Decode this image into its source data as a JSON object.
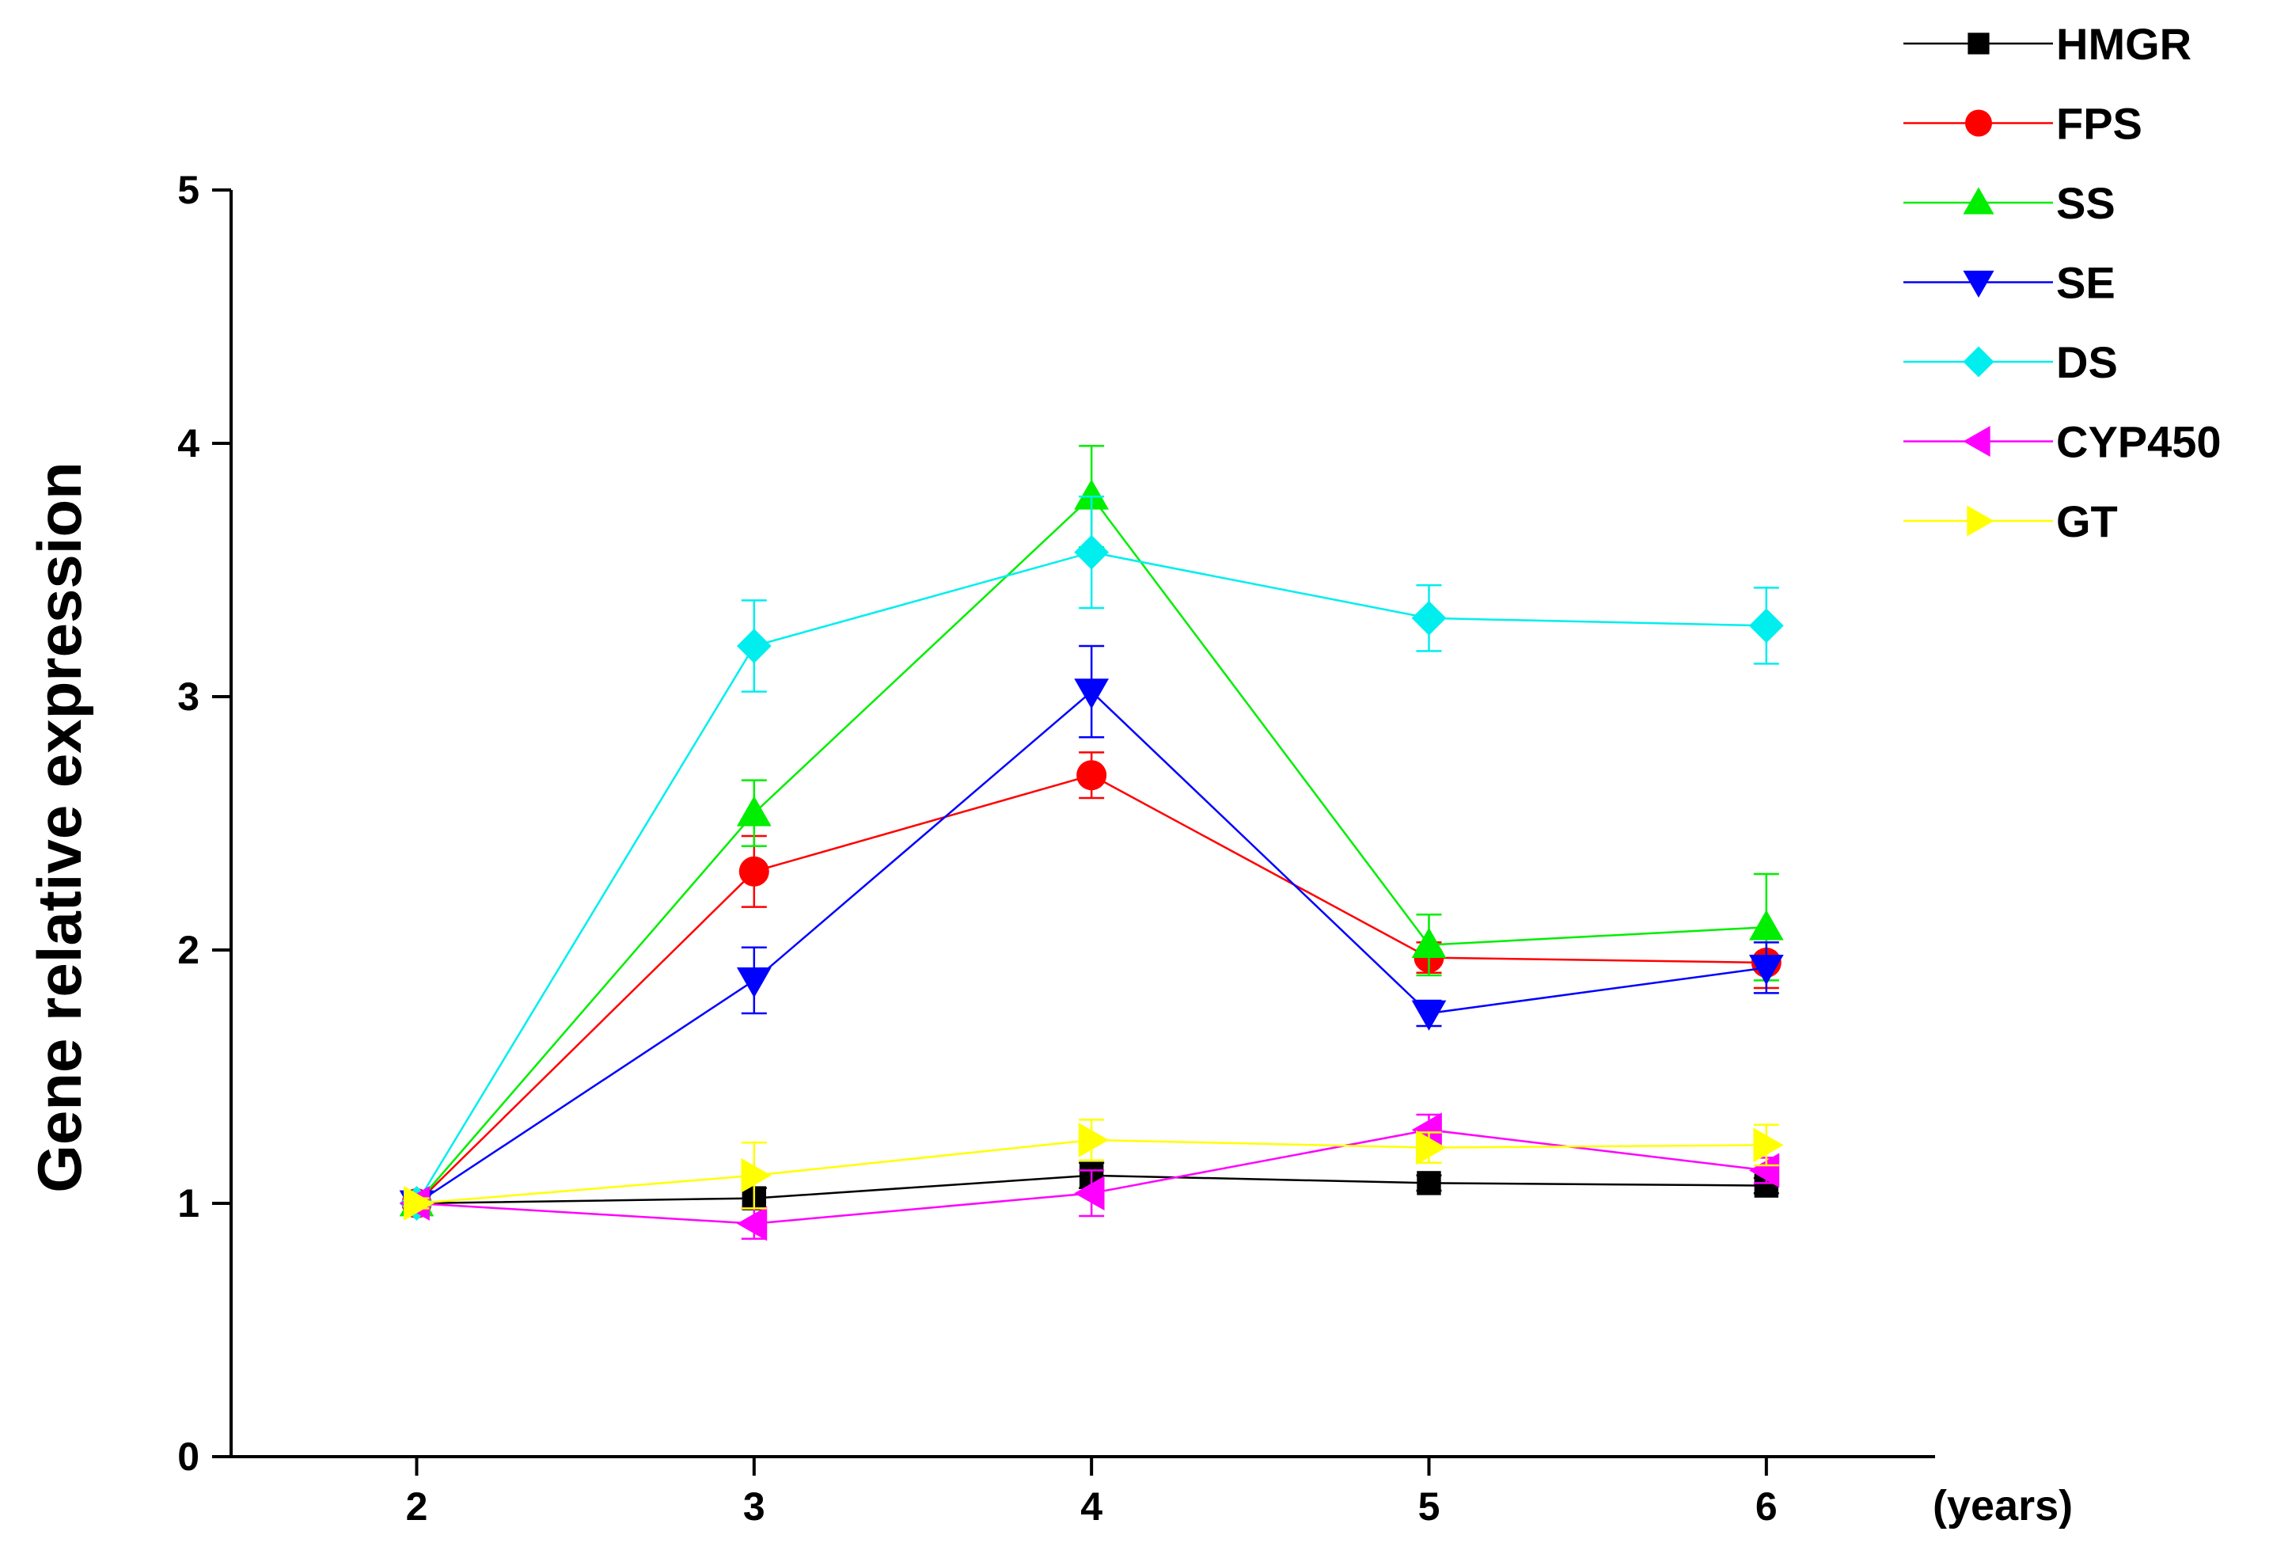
{
  "chart_data": {
    "type": "line",
    "title": "",
    "xlabel": "(years)",
    "ylabel": "Gene relative expression",
    "x": [
      2,
      3,
      4,
      5,
      6
    ],
    "xlim": [
      1.45,
      6.5
    ],
    "ylim": [
      0,
      5
    ],
    "yticks": [
      0,
      1,
      2,
      3,
      4,
      5
    ],
    "xticks": [
      2,
      3,
      4,
      5,
      6
    ],
    "grid": false,
    "legend_position": "top-right",
    "series": [
      {
        "name": "HMGR",
        "color": "#000000",
        "marker": "square",
        "values": [
          1.0,
          1.02,
          1.11,
          1.08,
          1.07
        ],
        "errors": [
          0.02,
          0.04,
          0.05,
          0.03,
          0.03
        ]
      },
      {
        "name": "FPS",
        "color": "#ff0000",
        "marker": "circle",
        "values": [
          1.0,
          2.31,
          2.69,
          1.97,
          1.95
        ],
        "errors": [
          0.02,
          0.14,
          0.09,
          0.06,
          0.1
        ]
      },
      {
        "name": "SS",
        "color": "#00ee00",
        "marker": "triangle-up",
        "values": [
          1.0,
          2.54,
          3.79,
          2.02,
          2.09
        ],
        "errors": [
          0.02,
          0.13,
          0.2,
          0.12,
          0.21
        ]
      },
      {
        "name": "SE",
        "color": "#0000ff",
        "marker": "triangle-down",
        "values": [
          1.0,
          1.88,
          3.02,
          1.75,
          1.93
        ],
        "errors": [
          0.02,
          0.13,
          0.18,
          0.05,
          0.1
        ]
      },
      {
        "name": "DS",
        "color": "#00eeee",
        "marker": "diamond",
        "values": [
          1.0,
          3.2,
          3.57,
          3.31,
          3.28
        ],
        "errors": [
          0.02,
          0.18,
          0.22,
          0.13,
          0.15
        ]
      },
      {
        "name": "CYP450",
        "color": "#ff00ff",
        "marker": "triangle-left",
        "values": [
          1.0,
          0.92,
          1.04,
          1.29,
          1.13
        ],
        "errors": [
          0.02,
          0.06,
          0.09,
          0.06,
          0.05
        ]
      },
      {
        "name": "GT",
        "color": "#ffff00",
        "marker": "triangle-right",
        "values": [
          1.0,
          1.11,
          1.25,
          1.22,
          1.23
        ],
        "errors": [
          0.02,
          0.13,
          0.08,
          0.06,
          0.08
        ]
      }
    ]
  }
}
